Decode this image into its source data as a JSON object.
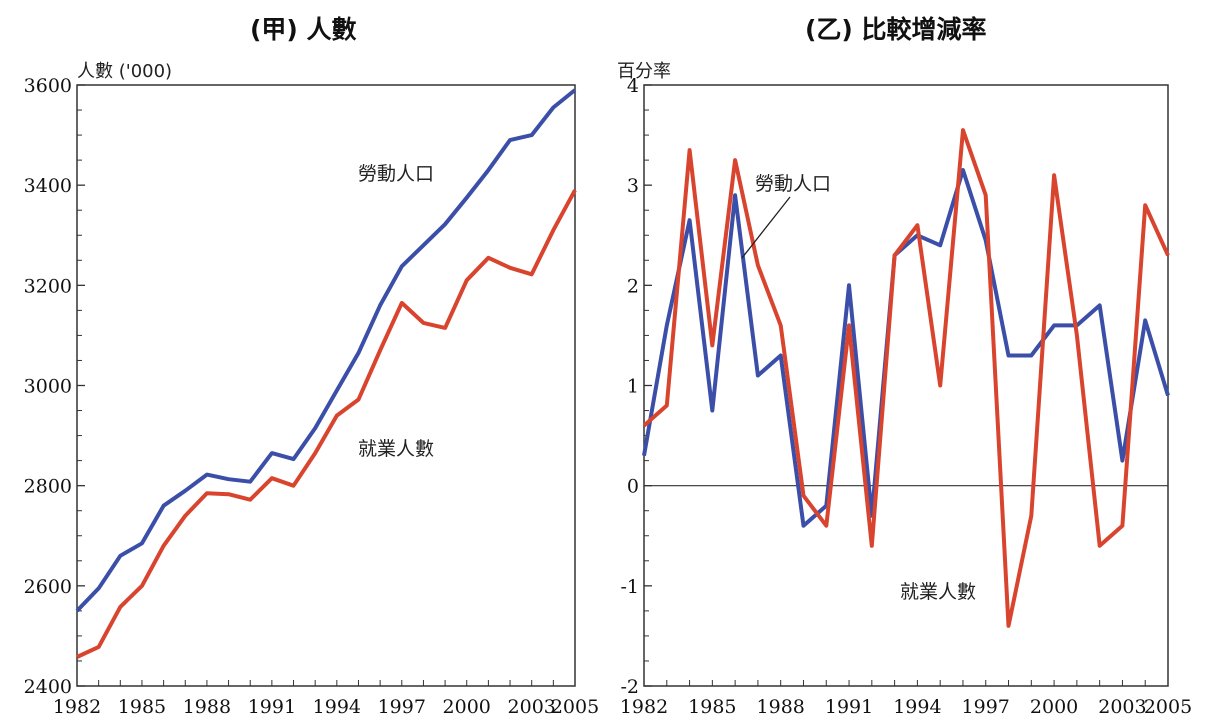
{
  "chart_data": [
    {
      "type": "line",
      "title": "(甲) 人數",
      "ylabel": "人數 ('000)",
      "ylim": [
        2400,
        3600
      ],
      "yticks": [
        "2400",
        "2600",
        "2800",
        "3000",
        "3200",
        "3400",
        "3600"
      ],
      "xticks": [
        "1982",
        "1985",
        "1988",
        "1991",
        "1994",
        "1997",
        "2000",
        "2003",
        "2005"
      ],
      "x": [
        1982,
        1983,
        1984,
        1985,
        1986,
        1987,
        1988,
        1989,
        1990,
        1991,
        1992,
        1993,
        1994,
        1995,
        1996,
        1997,
        1998,
        1999,
        2000,
        2001,
        2002,
        2003,
        2004,
        2005
      ],
      "series": [
        {
          "name": "勞動人口",
          "color": "#3b4fa8",
          "values": [
            2550,
            2595,
            2660,
            2685,
            2760,
            2790,
            2822,
            2813,
            2808,
            2865,
            2853,
            2915,
            2990,
            3065,
            3160,
            3238,
            3280,
            3322,
            3375,
            3430,
            3490,
            3500,
            3555,
            3590
          ]
        },
        {
          "name": "就業人數",
          "color": "#d9442e",
          "values": [
            2458,
            2478,
            2558,
            2600,
            2680,
            2740,
            2785,
            2783,
            2772,
            2815,
            2800,
            2865,
            2940,
            2972,
            3070,
            3165,
            3125,
            3115,
            3210,
            3255,
            3235,
            3222,
            3310,
            3390
          ]
        }
      ],
      "annotations": [
        {
          "text": "勞動人口",
          "series": "勞動人口"
        },
        {
          "text": "就業人數",
          "series": "就業人數"
        }
      ]
    },
    {
      "type": "line",
      "title": "(乙) 比較增減率",
      "ylabel": "百分率",
      "ylim": [
        -2,
        4
      ],
      "yticks": [
        "-2",
        "-1",
        "0",
        "1",
        "2",
        "3",
        "4"
      ],
      "xticks": [
        "1982",
        "1985",
        "1988",
        "1991",
        "1994",
        "1997",
        "2000",
        "2003",
        "2005"
      ],
      "x": [
        1982,
        1983,
        1984,
        1985,
        1986,
        1987,
        1988,
        1989,
        1990,
        1991,
        1992,
        1993,
        1994,
        1995,
        1996,
        1997,
        1998,
        1999,
        2000,
        2001,
        2002,
        2003,
        2004,
        2005
      ],
      "series": [
        {
          "name": "勞動人口",
          "color": "#3b4fa8",
          "values": [
            0.3,
            1.6,
            2.65,
            0.75,
            2.9,
            1.1,
            1.3,
            -0.4,
            -0.2,
            2.0,
            -0.3,
            2.3,
            2.5,
            2.4,
            3.15,
            2.45,
            1.3,
            1.3,
            1.6,
            1.6,
            1.8,
            0.25,
            1.65,
            0.9
          ]
        },
        {
          "name": "就業人數",
          "color": "#d9442e",
          "values": [
            0.6,
            0.8,
            3.35,
            1.4,
            3.25,
            2.2,
            1.6,
            -0.1,
            -0.4,
            1.6,
            -0.6,
            2.3,
            2.6,
            1.0,
            3.55,
            2.9,
            -1.4,
            -0.3,
            3.1,
            1.5,
            -0.6,
            -0.4,
            2.8,
            2.3
          ]
        }
      ],
      "annotations": [
        {
          "text": "勞動人口",
          "series": "勞動人口"
        },
        {
          "text": "就業人數",
          "series": "就業人數"
        }
      ]
    }
  ]
}
